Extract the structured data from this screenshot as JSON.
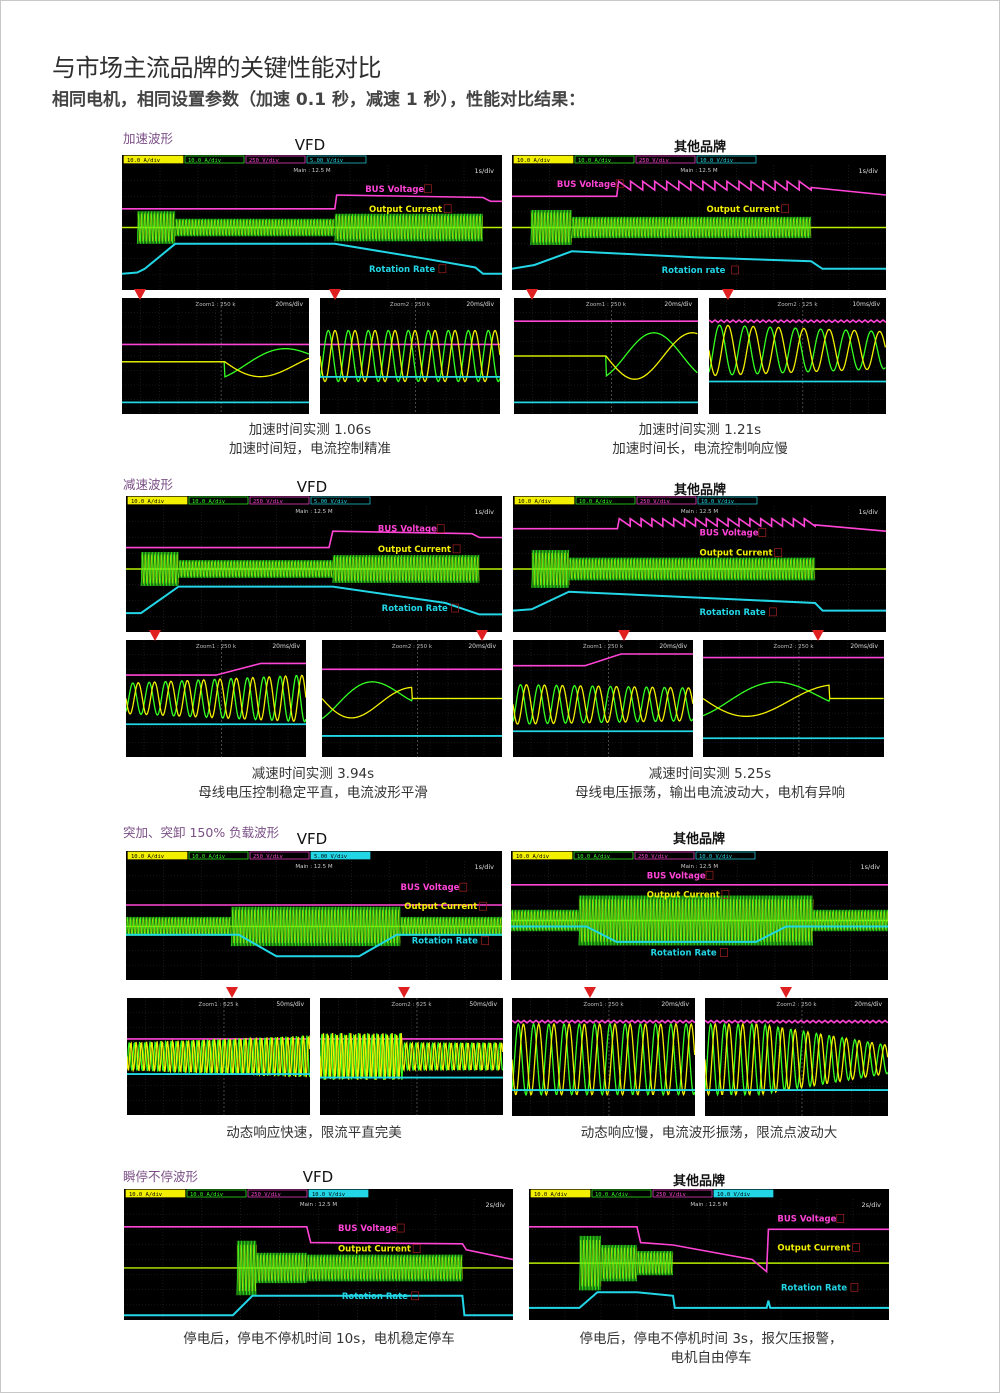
{
  "header": {
    "title": "与市场主流品牌的关键性能对比",
    "subtitle": "相同电机，相同设置参数（加速 0.1 秒，减速 1 秒），性能对比结果："
  },
  "colors": {
    "bus_voltage": "#ff44d6",
    "current_yellow": "#f2ef00",
    "current_green": "#35ff22",
    "rotation_rate": "#22d6e6",
    "marker_red": "#e02020",
    "section_label": "#7b4f86"
  },
  "sections": [
    {
      "label": "加速波形",
      "left": {
        "title": "VFD",
        "channels": [
          "10.0 A/div",
          "10.0 A/div",
          "250 V/div",
          "5.00 V/div"
        ],
        "main": "Main : 12.5 M",
        "timebase": "1s/div",
        "bus_label": "BUS Voltage",
        "current_label": "Output Current",
        "rotation_label": "Rotation Rate",
        "zooms": [
          {
            "name": "Zoom1 : 250 k",
            "timebase": "20ms/div"
          },
          {
            "name": "Zoom2 : 250 k",
            "timebase": "20ms/div"
          }
        ],
        "caption": [
          "加速时间实测 1.06s",
          "加速时间短，电流控制精准"
        ]
      },
      "right": {
        "title": "其他品牌",
        "channels": [
          "10.0 A/div",
          "10.0 A/div",
          "250 V/div",
          "10.0 V/div"
        ],
        "main": "Main : 12.5 M",
        "timebase": "1s/div",
        "bus_label": "BUS Voltage",
        "current_label": "Output Current",
        "rotation_label": "Rotation rate",
        "zooms": [
          {
            "name": "Zoom1 : 250 k",
            "timebase": "20ms/div"
          },
          {
            "name": "Zoom2 : 125 k",
            "timebase": "10ms/div"
          }
        ],
        "caption": [
          "加速时间实测 1.21s",
          "加速时间长，电流控制响应慢"
        ]
      }
    },
    {
      "label": "减速波形",
      "left": {
        "title": "VFD",
        "channels": [
          "10.0 A/div",
          "10.0 A/div",
          "250 V/div",
          "5.00 V/div"
        ],
        "main": "Main : 12.5 M",
        "timebase": "1s/div",
        "bus_label": "BUS Voltage",
        "current_label": "Output Current",
        "rotation_label": "Rotation Rate",
        "zooms": [
          {
            "name": "Zoom1 : 250 k",
            "timebase": "20ms/div"
          },
          {
            "name": "Zoom2 : 250 k",
            "timebase": "20ms/div"
          }
        ],
        "caption": [
          "减速时间实测 3.94s",
          "母线电压控制稳定平直，电流波形平滑"
        ]
      },
      "right": {
        "title": "其他品牌",
        "channels": [
          "10.0 A/div",
          "10.0 A/div",
          "250 V/div",
          "10.0 V/div"
        ],
        "main": "Main : 12.5 M",
        "timebase": "1s/div",
        "bus_label": "BUS Voltage",
        "current_label": "Output Current",
        "rotation_label": "Rotation Rate",
        "zooms": [
          {
            "name": "Zoom1 : 250 k",
            "timebase": "20ms/div"
          },
          {
            "name": "Zoom2 : 250 k",
            "timebase": "20ms/div"
          }
        ],
        "caption": [
          "减速时间实测 5.25s",
          "母线电压振荡，输出电流波动大，电机有异响"
        ]
      }
    },
    {
      "label": "突加、突卸 150% 负载波形",
      "left": {
        "title": "VFD",
        "channels": [
          "10.0 A/div",
          "10.0 A/div",
          "250 V/div",
          "5.00 V/div"
        ],
        "main": "Main : 12.5 M",
        "timebase": "1s/div",
        "bus_label": "BUS Voltage",
        "current_label": "Output Current",
        "rotation_label": "Rotation Rate",
        "zooms": [
          {
            "name": "Zoom1 : 625 k",
            "timebase": "50ms/div"
          },
          {
            "name": "Zoom2 : 625 k",
            "timebase": "50ms/div"
          }
        ],
        "caption": [
          "动态响应快速，限流平直完美"
        ]
      },
      "right": {
        "title": "其他品牌",
        "channels": [
          "10.0 A/div",
          "10.0 A/div",
          "250 V/div",
          "10.0 V/div"
        ],
        "main": "Main : 12.5 M",
        "timebase": "1s/div",
        "bus_label": "BUS Voltage",
        "current_label": "Output Current",
        "rotation_label": "Rotation Rate",
        "zooms": [
          {
            "name": "Zoom1 : 250 k",
            "timebase": "20ms/div"
          },
          {
            "name": "Zoom2 : 250 k",
            "timebase": "20ms/div"
          }
        ],
        "caption": [
          "动态响应慢，电流波形振荡，限流点波动大"
        ]
      }
    },
    {
      "label": "瞬停不停波形",
      "left": {
        "title": "VFD",
        "channels": [
          "10.0 A/div",
          "10.0 A/div",
          "250 V/div",
          "10.0 V/div"
        ],
        "main": "Main : 12.5 M",
        "timebase": "2s/div",
        "bus_label": "BUS Voltage",
        "current_label": "Output Current",
        "rotation_label": "Rotation Rate",
        "zooms": [],
        "caption": [
          "停电后，停电不停机时间 10s，电机稳定停车"
        ]
      },
      "right": {
        "title": "其他品牌",
        "channels": [
          "10.0 A/div",
          "10.0 A/div",
          "250 V/div",
          "10.0 V/div"
        ],
        "main": "Main : 12.5 M",
        "timebase": "2s/div",
        "bus_label": "BUS Voltage",
        "current_label": "Output Current",
        "rotation_label": "Rotation Rate",
        "zooms": [],
        "caption": [
          "停电后，停电不停机时间 3s，报欠压报警，",
          "电机自由停车"
        ]
      }
    }
  ]
}
